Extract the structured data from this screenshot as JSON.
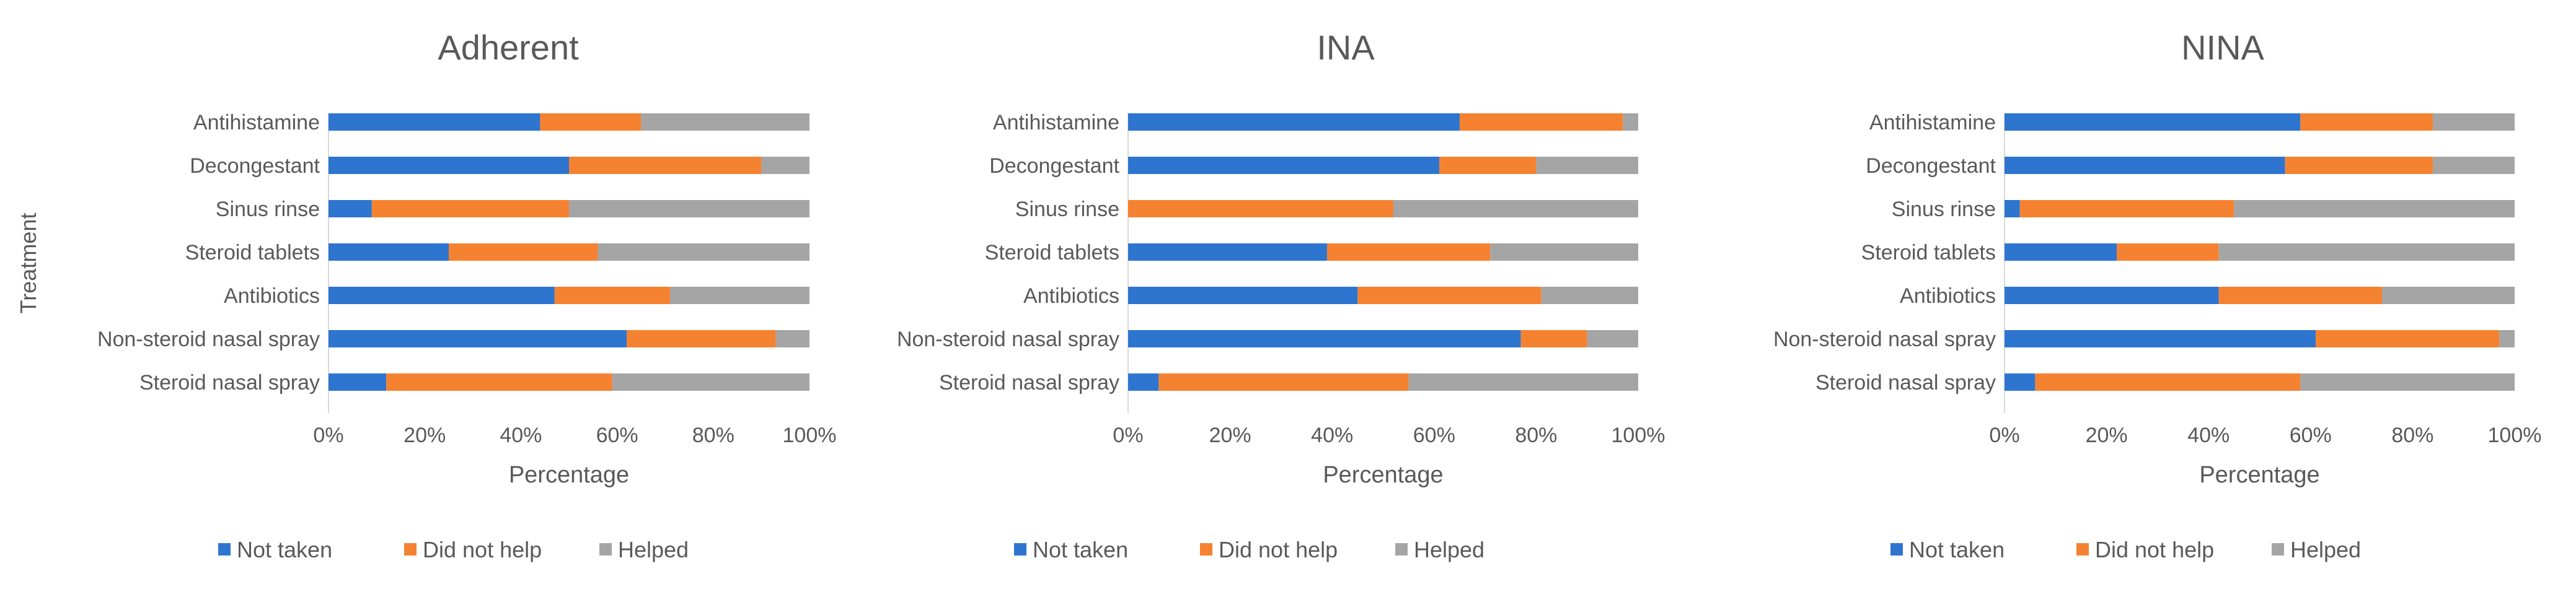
{
  "chart_data": [
    {
      "type": "bar",
      "orientation": "horizontal",
      "stacked": "percent",
      "title": "Adherent",
      "xlabel": "Percentage",
      "ylabel": "Treatment",
      "xlim": [
        0,
        100
      ],
      "x_ticks": [
        "0%",
        "20%",
        "40%",
        "60%",
        "80%",
        "100%"
      ],
      "categories": [
        "Antihistamine",
        "Decongestant",
        "Sinus rinse",
        "Steroid tablets",
        "Antibiotics",
        "Non-steroid nasal spray",
        "Steroid nasal spray"
      ],
      "series": [
        {
          "name": "Not taken",
          "values": [
            44,
            50,
            9,
            25,
            47,
            62,
            12
          ]
        },
        {
          "name": "Did not help",
          "values": [
            21,
            40,
            41,
            31,
            24,
            31,
            47
          ]
        },
        {
          "name": "Helped",
          "values": [
            35,
            10,
            50,
            44,
            29,
            7,
            41
          ]
        }
      ],
      "legend": "bottom"
    },
    {
      "type": "bar",
      "orientation": "horizontal",
      "stacked": "percent",
      "title": "INA",
      "xlabel": "Percentage",
      "ylabel": "",
      "xlim": [
        0,
        100
      ],
      "x_ticks": [
        "0%",
        "20%",
        "40%",
        "60%",
        "80%",
        "100%"
      ],
      "categories": [
        "Antihistamine",
        "Decongestant",
        "Sinus rinse",
        "Steroid tablets",
        "Antibiotics",
        "Non-steroid nasal spray",
        "Steroid nasal spray"
      ],
      "series": [
        {
          "name": "Not taken",
          "values": [
            65,
            61,
            0,
            39,
            45,
            77,
            6
          ]
        },
        {
          "name": "Did not help",
          "values": [
            32,
            19,
            52,
            32,
            36,
            13,
            49
          ]
        },
        {
          "name": "Helped",
          "values": [
            3,
            20,
            48,
            29,
            19,
            10,
            45
          ]
        }
      ],
      "legend": "bottom"
    },
    {
      "type": "bar",
      "orientation": "horizontal",
      "stacked": "percent",
      "title": "NINA",
      "xlabel": "Percentage",
      "ylabel": "",
      "xlim": [
        0,
        100
      ],
      "x_ticks": [
        "0%",
        "20%",
        "40%",
        "60%",
        "80%",
        "100%"
      ],
      "categories": [
        "Antihistamine",
        "Decongestant",
        "Sinus rinse",
        "Steroid tablets",
        "Antibiotics",
        "Non-steroid nasal spray",
        "Steroid nasal spray"
      ],
      "series": [
        {
          "name": "Not taken",
          "values": [
            58,
            55,
            3,
            22,
            42,
            61,
            6
          ]
        },
        {
          "name": "Did not help",
          "values": [
            26,
            29,
            42,
            20,
            32,
            36,
            52
          ]
        },
        {
          "name": "Helped",
          "values": [
            16,
            16,
            55,
            58,
            26,
            3,
            42
          ]
        }
      ],
      "legend": "bottom"
    }
  ],
  "colors": {
    "Not taken": "#2E75D0",
    "Did not help": "#F58231",
    "Helped": "#A5A5A5",
    "axis": "#D9D9D9",
    "text": "#595959"
  }
}
